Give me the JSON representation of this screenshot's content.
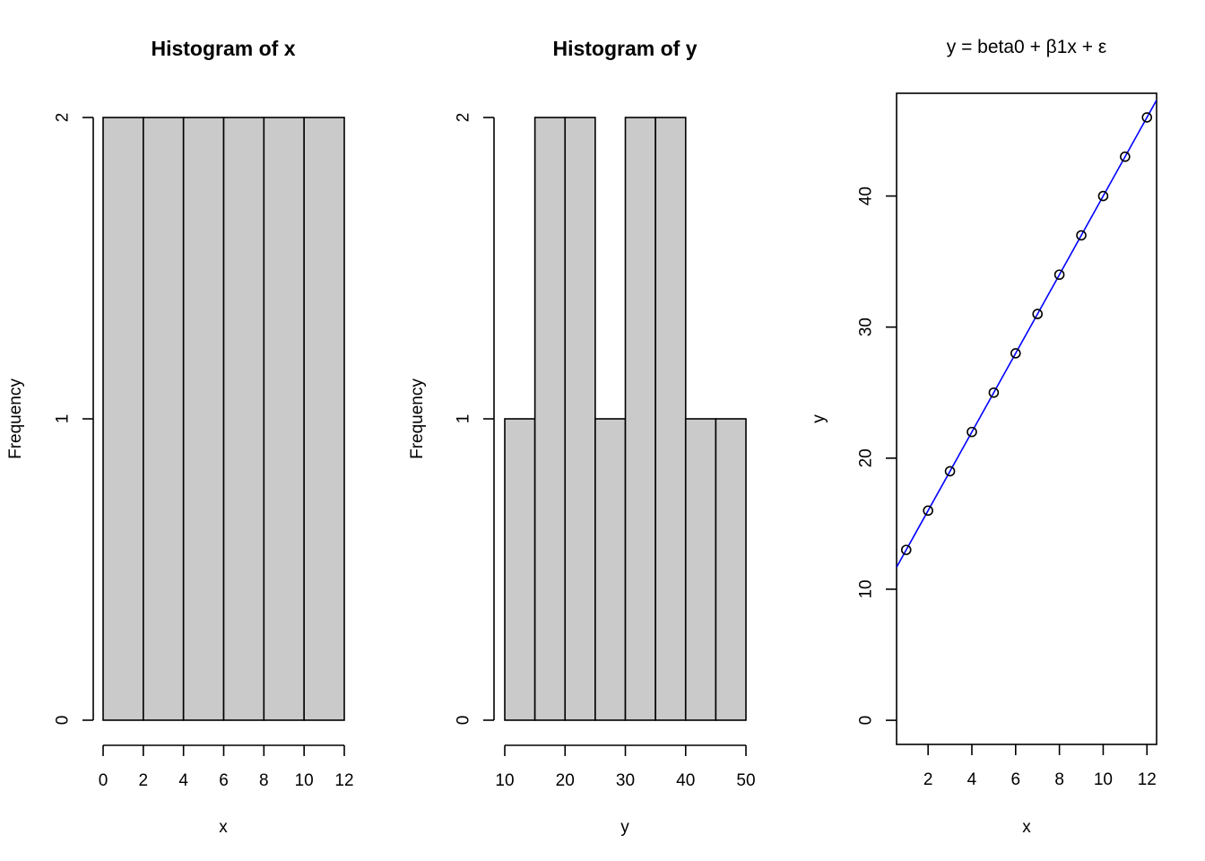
{
  "chart_data": [
    {
      "type": "bar",
      "title": "Histogram of x",
      "xlabel": "x",
      "ylabel": "Frequency",
      "bin_edges": [
        0,
        2,
        4,
        6,
        8,
        10,
        12
      ],
      "counts": [
        2,
        2,
        2,
        2,
        2,
        2
      ],
      "xticks": [
        "0",
        "2",
        "4",
        "6",
        "8",
        "10",
        "12"
      ],
      "yticks": [
        "0",
        "1",
        "2"
      ],
      "xlim": [
        0,
        12
      ],
      "ylim": [
        0,
        2
      ],
      "bar_color": "#cacaca"
    },
    {
      "type": "bar",
      "title": "Histogram of y",
      "xlabel": "y",
      "ylabel": "Frequency",
      "bin_edges": [
        10,
        15,
        20,
        25,
        30,
        35,
        40,
        45,
        50
      ],
      "counts": [
        1,
        2,
        2,
        1,
        2,
        2,
        1,
        1
      ],
      "xticks": [
        "10",
        "20",
        "30",
        "40",
        "50"
      ],
      "yticks": [
        "0",
        "1",
        "2"
      ],
      "xlim": [
        10,
        50
      ],
      "ylim": [
        0,
        2
      ],
      "bar_color": "#cacaca"
    },
    {
      "type": "scatter",
      "title": "y = beta0 + β1x + ε",
      "xlabel": "x",
      "ylabel": "y",
      "x": [
        1,
        2,
        3,
        4,
        5,
        6,
        7,
        8,
        9,
        10,
        11,
        12
      ],
      "y": [
        13,
        16,
        19,
        22,
        25,
        28,
        31,
        34,
        37,
        40,
        43,
        46
      ],
      "fit_line": {
        "intercept": 10,
        "slope": 3,
        "color": "#0000ff"
      },
      "xticks": [
        "2",
        "4",
        "6",
        "8",
        "10",
        "12"
      ],
      "yticks": [
        "0",
        "10",
        "20",
        "30",
        "40"
      ],
      "xlim": [
        0.56,
        12.44
      ],
      "ylim": [
        -1.84,
        47.84
      ]
    }
  ]
}
